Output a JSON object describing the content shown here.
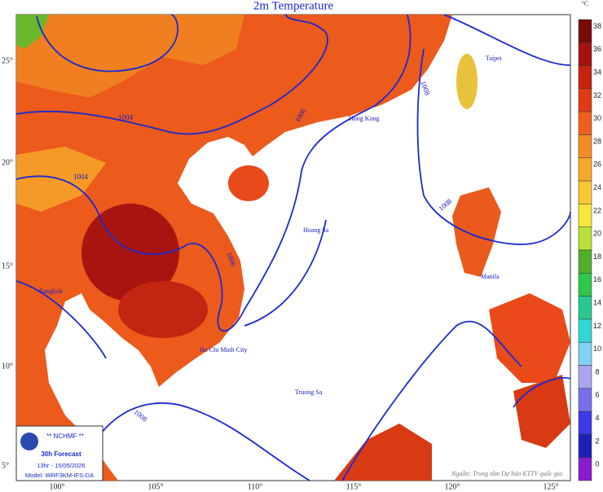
{
  "title": "2m Temperature",
  "colorbar": {
    "unit": "°C",
    "levels": [
      {
        "value": 38,
        "color": "#7a0a0a"
      },
      {
        "value": 36,
        "color": "#a5120f"
      },
      {
        "value": 34,
        "color": "#c8230f"
      },
      {
        "value": 32,
        "color": "#e23a14"
      },
      {
        "value": 30,
        "color": "#f0601c"
      },
      {
        "value": 28,
        "color": "#f58a24"
      },
      {
        "value": 26,
        "color": "#f8a82a"
      },
      {
        "value": 24,
        "color": "#fcc634"
      },
      {
        "value": 22,
        "color": "#f7e83a"
      },
      {
        "value": 20,
        "color": "#b8e23a"
      },
      {
        "value": 18,
        "color": "#4fae2a"
      },
      {
        "value": 16,
        "color": "#2fc84a"
      },
      {
        "value": 14,
        "color": "#28c890"
      },
      {
        "value": 12,
        "color": "#32d8d0"
      },
      {
        "value": 10,
        "color": "#7ed4f4"
      },
      {
        "value": 8,
        "color": "#a9a6f0"
      },
      {
        "value": 6,
        "color": "#7470ee"
      },
      {
        "value": 4,
        "color": "#3a3ae8"
      },
      {
        "value": 2,
        "color": "#2020b8"
      },
      {
        "value": 0,
        "color": "#8a1ad0"
      }
    ]
  },
  "longitude_labels": [
    "100°",
    "105°",
    "110°",
    "115°",
    "120°",
    "125°"
  ],
  "latitude_labels": [
    "25°",
    "20°",
    "15°",
    "10°",
    "5°"
  ],
  "places": [
    "Taipei",
    "Hong Kong",
    "Hoang Sa",
    "Truong Sa",
    "Manila",
    "Bangkok",
    "Ho Chi Minh City"
  ],
  "isobar_labels": [
    "1004",
    "1006",
    "1004",
    "1008",
    "1006",
    "1008",
    "1008"
  ],
  "info_box": {
    "org": "** NCHMF **",
    "forecast": "30h Forecast",
    "time": "13hr - 15/05/2026",
    "model": "Model: WRF3KM-IFS-DA"
  },
  "source": "Nguồn: Trung tâm Dự báo KTTV quốc gia"
}
